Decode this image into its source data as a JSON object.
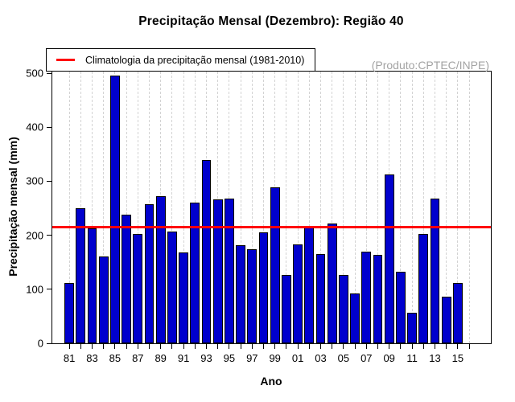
{
  "chart_data": {
    "type": "bar",
    "title": "Precipitação Mensal (Dezembro): Região 40",
    "xlabel": "Ano",
    "ylabel": "Precipitação mensal (mm)",
    "ylim": [
      0,
      505
    ],
    "yticks": [
      0,
      100,
      200,
      300,
      400,
      500
    ],
    "categories": [
      "81",
      "82",
      "83",
      "84",
      "85",
      "86",
      "87",
      "88",
      "89",
      "90",
      "91",
      "92",
      "93",
      "94",
      "95",
      "96",
      "97",
      "98",
      "99",
      "00",
      "01",
      "02",
      "03",
      "04",
      "05",
      "06",
      "07",
      "08",
      "09",
      "10",
      "11",
      "12",
      "13",
      "14",
      "15"
    ],
    "values": [
      112,
      250,
      213,
      160,
      495,
      238,
      202,
      258,
      272,
      207,
      168,
      261,
      340,
      266,
      268,
      182,
      174,
      205,
      288,
      126,
      183,
      215,
      165,
      222,
      127,
      92,
      169,
      163,
      312,
      132,
      56,
      203,
      268,
      87,
      111
    ],
    "x_slots": 36,
    "xtick_label_every": 2,
    "bar_color": "#0000CD",
    "bar_border_color": "#000000",
    "grid": {
      "orientation": "vertical",
      "style": "dashed",
      "color": "#D3D3D3"
    },
    "climatology": {
      "label": "Climatologia da precipitação mensal (1981-2010)",
      "value": 215.5,
      "color": "#FF0000"
    },
    "legend_position": "top-left",
    "annotation": {
      "text": "(Produto:CPTEC/INPE)",
      "color": "#A3A3A3"
    }
  }
}
